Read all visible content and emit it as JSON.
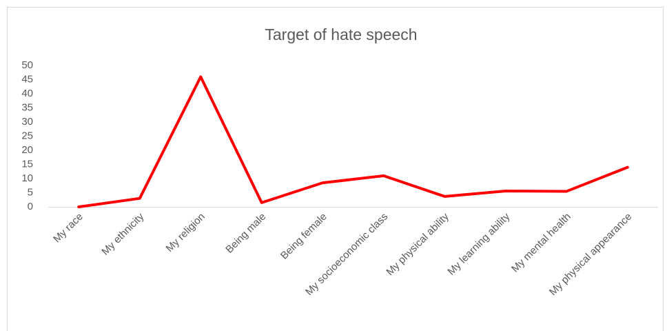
{
  "chart_data": {
    "type": "line",
    "title": "Target of hate speech",
    "categories": [
      "My race",
      "My ethnicity",
      "My religion",
      "Being male",
      "Being female",
      "My socioeconomic class",
      "My physical ability",
      "My learning ability",
      "My mental health",
      "My physical appearance"
    ],
    "values": [
      0,
      3,
      46,
      1.5,
      8.5,
      11,
      3.7,
      5.6,
      5.5,
      14
    ],
    "color": "#ff0000",
    "ylim": [
      0,
      50
    ],
    "yticks": [
      0,
      5,
      10,
      15,
      20,
      25,
      30,
      35,
      40,
      45,
      50
    ],
    "grid": false
  }
}
